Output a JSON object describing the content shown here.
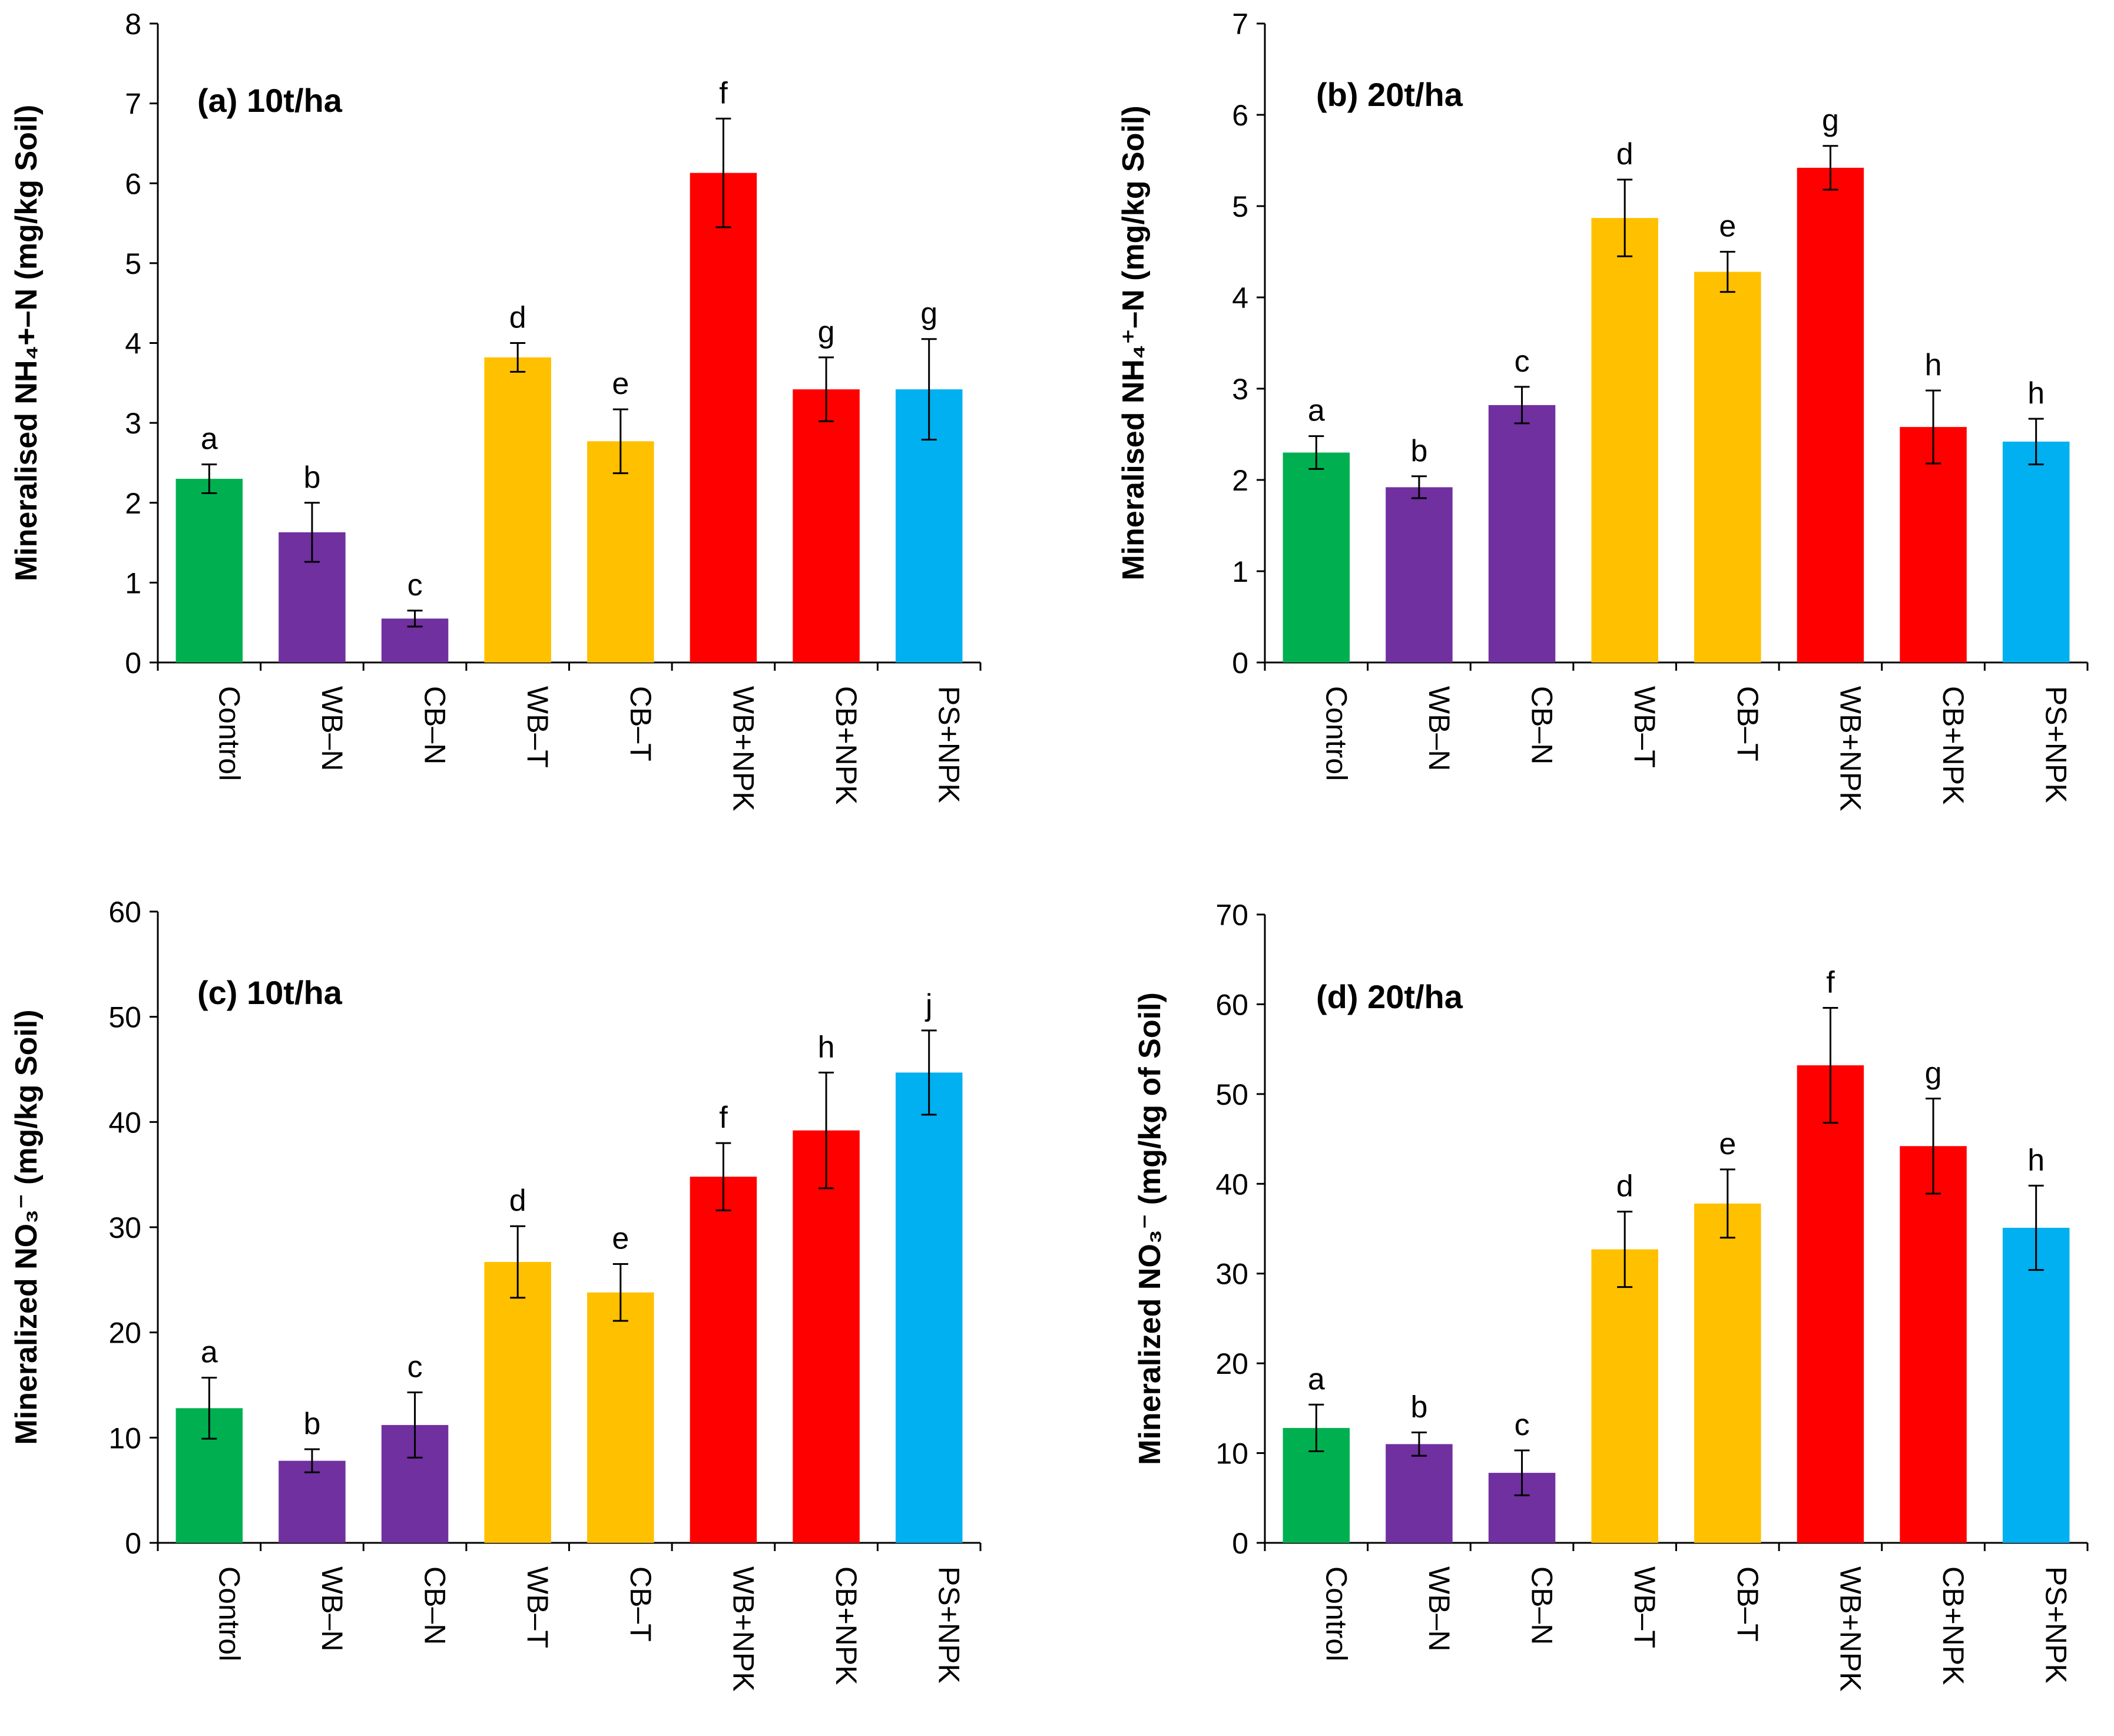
{
  "chart_data": [
    {
      "id": "a",
      "type": "bar",
      "title": "(a) 10t/ha",
      "ylabel": "Mineralised NH₄+–N (mg/kg Soil)",
      "ylim": [
        0,
        8
      ],
      "ytick_step": 1,
      "categories": [
        "Control",
        "WB–N",
        "CB–N",
        "WB–T",
        "CB–T",
        "WB+NPK",
        "CB+NPK",
        "PS+NPK"
      ],
      "values": [
        2.3,
        1.63,
        0.55,
        3.82,
        2.77,
        6.13,
        3.42,
        3.42
      ],
      "errors": [
        0.18,
        0.37,
        0.1,
        0.18,
        0.4,
        0.68,
        0.4,
        0.63
      ],
      "sig_letters": [
        "a",
        "b",
        "c",
        "d",
        "e",
        "f",
        "g",
        "g"
      ]
    },
    {
      "id": "b",
      "type": "bar",
      "title": "(b) 20t/ha",
      "ylabel": "Mineralised NH₄⁺–N (mg/kg Soil)",
      "ylim": [
        0,
        7
      ],
      "ytick_step": 1,
      "categories": [
        "Control",
        "WB–N",
        "CB–N",
        "WB–T",
        "CB–T",
        "WB+NPK",
        "CB+NPK",
        "PS+NPK"
      ],
      "values": [
        2.3,
        1.92,
        2.82,
        4.87,
        4.28,
        5.42,
        2.58,
        2.42
      ],
      "errors": [
        0.18,
        0.12,
        0.2,
        0.42,
        0.22,
        0.24,
        0.4,
        0.25
      ],
      "sig_letters": [
        "a",
        "b",
        "c",
        "d",
        "e",
        "g",
        "h",
        "h"
      ]
    },
    {
      "id": "c",
      "type": "bar",
      "title": "(c) 10t/ha",
      "ylabel": "Mineralized  NO₃⁻ (mg/kg Soil)",
      "ylim": [
        0,
        60
      ],
      "ytick_step": 10,
      "categories": [
        "Control",
        "WB–N",
        "CB–N",
        "WB–T",
        "CB–T",
        "WB+NPK",
        "CB+NPK",
        "PS+NPK"
      ],
      "values": [
        12.8,
        7.8,
        11.2,
        26.7,
        23.8,
        34.8,
        39.2,
        44.7
      ],
      "errors": [
        2.9,
        1.1,
        3.1,
        3.4,
        2.7,
        3.2,
        5.5,
        4.0
      ],
      "sig_letters": [
        "a",
        "b",
        "c",
        "d",
        "e",
        "f",
        "h",
        "j"
      ]
    },
    {
      "id": "d",
      "type": "bar",
      "title": "(d) 20t/ha",
      "ylabel": "Mineralized NO₃⁻ (mg/kg of Soil)",
      "ylim": [
        0,
        70
      ],
      "ytick_step": 10,
      "categories": [
        "Control",
        "WB–N",
        "CB–N",
        "WB–T",
        "CB–T",
        "WB+NPK",
        "CB+NPK",
        "PS+NPK"
      ],
      "values": [
        12.8,
        11.0,
        7.8,
        32.7,
        37.8,
        53.2,
        44.2,
        35.1
      ],
      "errors": [
        2.6,
        1.3,
        2.5,
        4.2,
        3.8,
        6.4,
        5.3,
        4.7
      ],
      "sig_letters": [
        "a",
        "b",
        "c",
        "d",
        "e",
        "f",
        "g",
        "h"
      ]
    }
  ],
  "colors": {
    "Control": "#00b050",
    "WB–N": "#7030a0",
    "CB–N": "#7030a0",
    "WB–T": "#ffc000",
    "CB–T": "#ffc000",
    "WB+NPK": "#ff0000",
    "CB+NPK": "#ff0000",
    "PS+NPK": "#00b0f0"
  }
}
